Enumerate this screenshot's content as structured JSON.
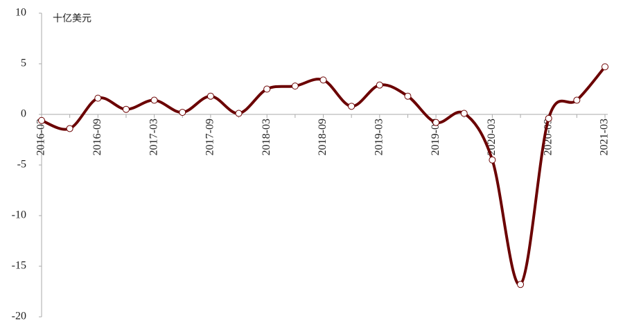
{
  "chart_data": {
    "type": "line",
    "unit": "十亿美元",
    "categories": [
      "2016-03",
      null,
      "2016-09",
      null,
      "2017-03",
      null,
      "2017-09",
      null,
      "2018-03",
      null,
      "2018-09",
      null,
      "2019-03",
      null,
      "2019-09",
      null,
      "2020-03",
      null,
      "2020-09",
      null,
      "2021-03"
    ],
    "series": [
      {
        "color": "#6b0000",
        "values": [
          -0.6,
          -1.4,
          1.6,
          0.5,
          1.4,
          0.2,
          1.8,
          0.1,
          2.5,
          2.8,
          3.4,
          0.8,
          2.9,
          1.8,
          -0.8,
          0.1,
          -4.5,
          -16.8,
          -0.4,
          1.4,
          4.7
        ]
      }
    ],
    "ylim": [
      -20,
      10
    ],
    "yticks": [
      10,
      5,
      0,
      -5,
      -10,
      -15,
      -20
    ]
  }
}
